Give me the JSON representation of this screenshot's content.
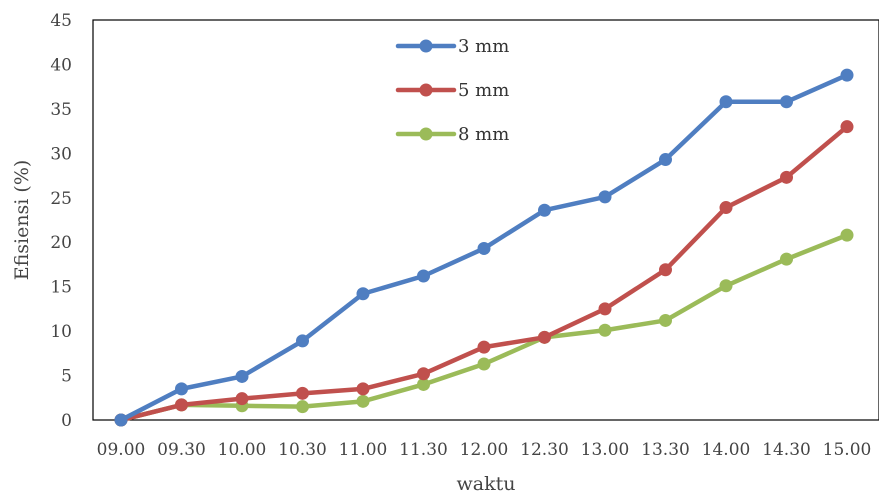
{
  "chart_data": {
    "type": "line",
    "title": "",
    "xlabel": "waktu",
    "ylabel": "Efisiensi (%)",
    "ylim": [
      0,
      45
    ],
    "yticks": [
      0,
      5,
      10,
      15,
      20,
      25,
      30,
      35,
      40,
      45
    ],
    "grid": false,
    "legend_position": "top-center",
    "categories": [
      "09.00",
      "09.30",
      "10.00",
      "10.30",
      "11.00",
      "11.30",
      "12.00",
      "12.30",
      "13.00",
      "13.30",
      "14.00",
      "14.30",
      "15.00"
    ],
    "series": [
      {
        "name": "3 mm",
        "color": "#4F7EC1",
        "values": [
          0,
          3.5,
          4.9,
          8.9,
          14.2,
          16.2,
          19.3,
          23.6,
          25.1,
          29.3,
          35.8,
          35.8,
          38.8
        ]
      },
      {
        "name": "5 mm",
        "color": "#C0504D",
        "values": [
          0,
          1.7,
          2.4,
          3.0,
          3.5,
          5.2,
          8.2,
          9.3,
          12.5,
          16.9,
          23.9,
          27.3,
          33.0
        ]
      },
      {
        "name": "8 mm",
        "color": "#9BBB59",
        "values": [
          0,
          1.7,
          1.6,
          1.5,
          2.1,
          4.0,
          6.3,
          9.3,
          10.1,
          11.2,
          15.1,
          18.1,
          20.8
        ]
      }
    ]
  }
}
